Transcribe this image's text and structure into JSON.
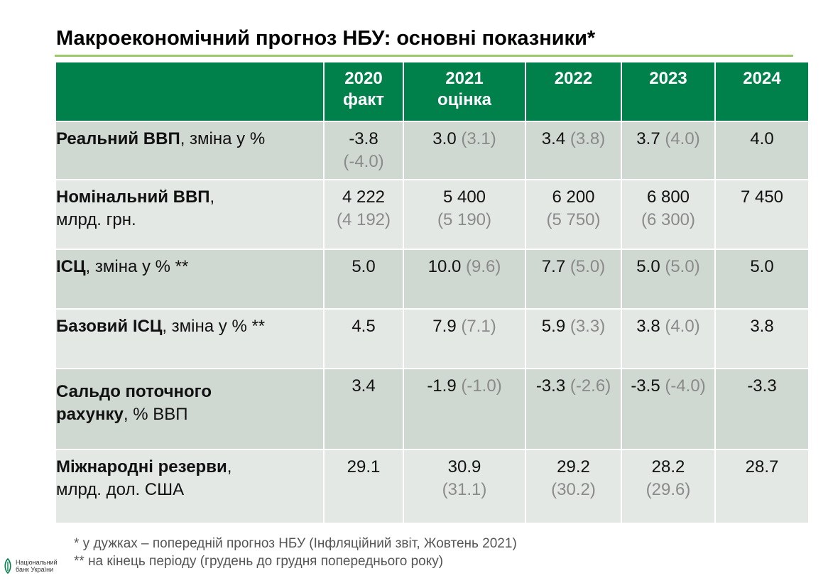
{
  "title": "Макроекономічний прогноз НБУ: основні показники*",
  "columns": [
    {
      "line1": "2020",
      "line2": "факт"
    },
    {
      "line1": "2021",
      "line2": "оцінка"
    },
    {
      "line1": "2022",
      "line2": ""
    },
    {
      "line1": "2023",
      "line2": ""
    },
    {
      "line1": "2024",
      "line2": ""
    }
  ],
  "rows": [
    {
      "label_bold1": "Реальний ВВП",
      "label_rest1": ", зміна у %",
      "label_bold2": "",
      "label_rest2": "",
      "cells": [
        {
          "main": "-3.8",
          "prev_inline": "",
          "prev_below": "(-4.0)"
        },
        {
          "main": "3.0",
          "prev_inline": "(3.1)",
          "prev_below": ""
        },
        {
          "main": "3.4",
          "prev_inline": "(3.8)",
          "prev_below": ""
        },
        {
          "main": "3.7",
          "prev_inline": "(4.0)",
          "prev_below": ""
        },
        {
          "main": "4.0",
          "prev_inline": "",
          "prev_below": ""
        }
      ]
    },
    {
      "label_bold1": "Номінальний ВВП",
      "label_rest1": ",",
      "label_bold2": "",
      "label_rest2": "млрд. грн.",
      "cells": [
        {
          "main": "4 222",
          "prev_inline": "",
          "prev_below": "(4 192)"
        },
        {
          "main": "5 400",
          "prev_inline": "",
          "prev_below": "(5 190)"
        },
        {
          "main": "6 200",
          "prev_inline": "",
          "prev_below": "(5 750)"
        },
        {
          "main": "6 800",
          "prev_inline": "",
          "prev_below": "(6 300)"
        },
        {
          "main": "7 450",
          "prev_inline": "",
          "prev_below": ""
        }
      ]
    },
    {
      "label_bold1": "ІСЦ",
      "label_rest1": ", зміна у % **",
      "label_bold2": "",
      "label_rest2": "",
      "cells": [
        {
          "main": "5.0",
          "prev_inline": "",
          "prev_below": ""
        },
        {
          "main": "10.0",
          "prev_inline": "(9.6)",
          "prev_below": ""
        },
        {
          "main": "7.7",
          "prev_inline": "(5.0)",
          "prev_below": ""
        },
        {
          "main": "5.0",
          "prev_inline": "(5.0)",
          "prev_below": ""
        },
        {
          "main": "5.0",
          "prev_inline": "",
          "prev_below": ""
        }
      ]
    },
    {
      "label_bold1": "Базовий ІСЦ",
      "label_rest1": ", зміна у % **",
      "label_bold2": "",
      "label_rest2": "",
      "cells": [
        {
          "main": "4.5",
          "prev_inline": "",
          "prev_below": ""
        },
        {
          "main": "7.9",
          "prev_inline": "(7.1)",
          "prev_below": ""
        },
        {
          "main": "5.9",
          "prev_inline": "(3.3)",
          "prev_below": ""
        },
        {
          "main": "3.8",
          "prev_inline": "(4.0)",
          "prev_below": ""
        },
        {
          "main": "3.8",
          "prev_inline": "",
          "prev_below": ""
        }
      ]
    },
    {
      "label_bold1": "Сальдо поточного",
      "label_rest1": "",
      "label_bold2": "рахунку",
      "label_rest2": ", % ВВП",
      "cells": [
        {
          "main": "3.4",
          "prev_inline": "",
          "prev_below": ""
        },
        {
          "main": "-1.9",
          "prev_inline": "(-1.0)",
          "prev_below": ""
        },
        {
          "main": "-3.3",
          "prev_inline": "(-2.6)",
          "prev_below": ""
        },
        {
          "main": "-3.5",
          "prev_inline": "(-4.0)",
          "prev_below": ""
        },
        {
          "main": "-3.3",
          "prev_inline": "",
          "prev_below": ""
        }
      ]
    },
    {
      "label_bold1": "Міжнародні резерви",
      "label_rest1": ",",
      "label_bold2": "",
      "label_rest2": "млрд. дол. США",
      "cells": [
        {
          "main": "29.1",
          "prev_inline": "",
          "prev_below": ""
        },
        {
          "main": "30.9",
          "prev_inline": "",
          "prev_below": "(31.1)"
        },
        {
          "main": "29.2",
          "prev_inline": "",
          "prev_below": "(30.2)"
        },
        {
          "main": "28.2",
          "prev_inline": "",
          "prev_below": "(29.6)"
        },
        {
          "main": "28.7",
          "prev_inline": "",
          "prev_below": ""
        }
      ]
    }
  ],
  "footnotes": {
    "note1": "* у дужках – попередній прогноз НБУ (Інфляційний звіт, Жовтень 2021)",
    "note2": "** на кінець періоду (грудень до грудня попереднього року)"
  },
  "logo": {
    "line1": "Національний",
    "line2": "банк України",
    "icon": "nbu-logo-icon"
  },
  "colors": {
    "header_green": "#00814b",
    "title_rule": "#9dc96a",
    "row_dark": "#d0d8d2",
    "row_light": "#e4e8e5",
    "prev_gray": "#8a8a8a"
  }
}
